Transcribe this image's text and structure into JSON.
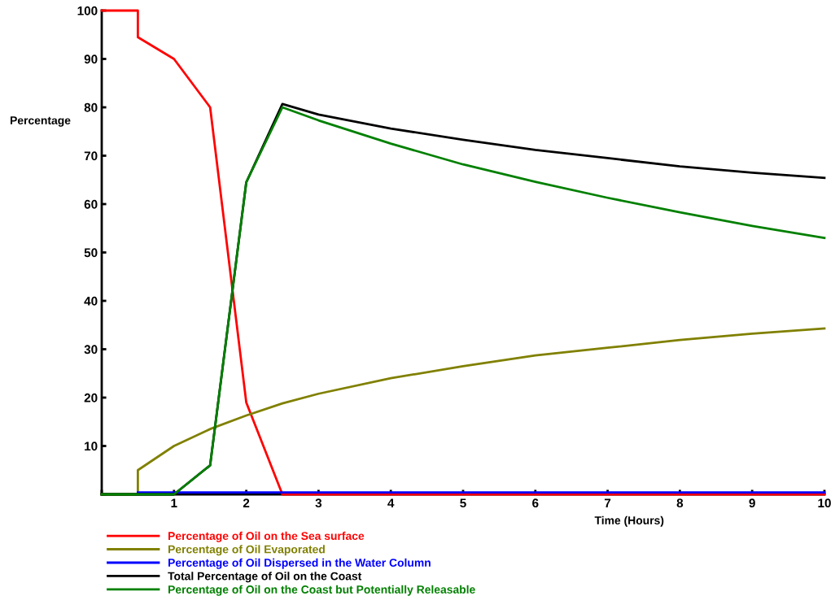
{
  "chart_data": {
    "type": "line",
    "ylabel": "Percentage",
    "xlabel": "Time (Hours)",
    "xlim": [
      0,
      10
    ],
    "ylim": [
      0,
      100
    ],
    "xticks": [
      {
        "value": 0,
        "label": null
      },
      1,
      2,
      3,
      4,
      5,
      6,
      7,
      8,
      9,
      10
    ],
    "yticks": [
      {
        "value": 0,
        "label": null
      },
      10,
      20,
      30,
      40,
      50,
      60,
      70,
      80,
      90,
      100
    ],
    "grid": false,
    "legend": "bottom",
    "marker": "none",
    "line_style": "solid",
    "series": [
      {
        "name": "Percentage of Oil on the Sea surface",
        "color": "#ff0000",
        "x": [
          0,
          0.5,
          0.5,
          1,
          1.5,
          2,
          2.5,
          10
        ],
        "values": [
          100,
          100,
          94.5,
          90,
          80,
          19,
          0,
          0
        ]
      },
      {
        "name": "Percentage of Oil Evaporated",
        "color": "#808000",
        "x": [
          0,
          0.5,
          0.5,
          1,
          1.5,
          2,
          2.5,
          3,
          4,
          5,
          6,
          7,
          8,
          9,
          10
        ],
        "values": [
          0,
          0,
          5,
          10,
          13.5,
          16.3,
          18.8,
          20.8,
          24,
          26.5,
          28.7,
          30.3,
          31.9,
          33.2,
          34.3
        ]
      },
      {
        "name": "Percentage of Oil Dispersed in the Water Column",
        "color": "#0000ff",
        "x": [
          0.5,
          10
        ],
        "values": [
          0.4,
          0.4
        ]
      },
      {
        "name": "Total Percentage of Oil on the Coast",
        "color": "#000000",
        "x": [
          0,
          1,
          1.5,
          2,
          2.5,
          3,
          4,
          5,
          6,
          7,
          8,
          9,
          10
        ],
        "values": [
          0,
          0,
          6,
          64.5,
          80.7,
          78.5,
          75.6,
          73.3,
          71.2,
          69.5,
          67.8,
          66.5,
          65.4
        ]
      },
      {
        "name": "Percentage of Oil on the Coast but Potentially Releasable",
        "color": "#008000",
        "x": [
          0,
          1,
          1.5,
          2,
          2.5,
          3,
          4,
          5,
          6,
          7,
          8,
          9,
          10
        ],
        "values": [
          0,
          0,
          6,
          64.5,
          80,
          77.3,
          72.5,
          68.2,
          64.6,
          61.3,
          58.3,
          55.5,
          53
        ]
      }
    ]
  }
}
